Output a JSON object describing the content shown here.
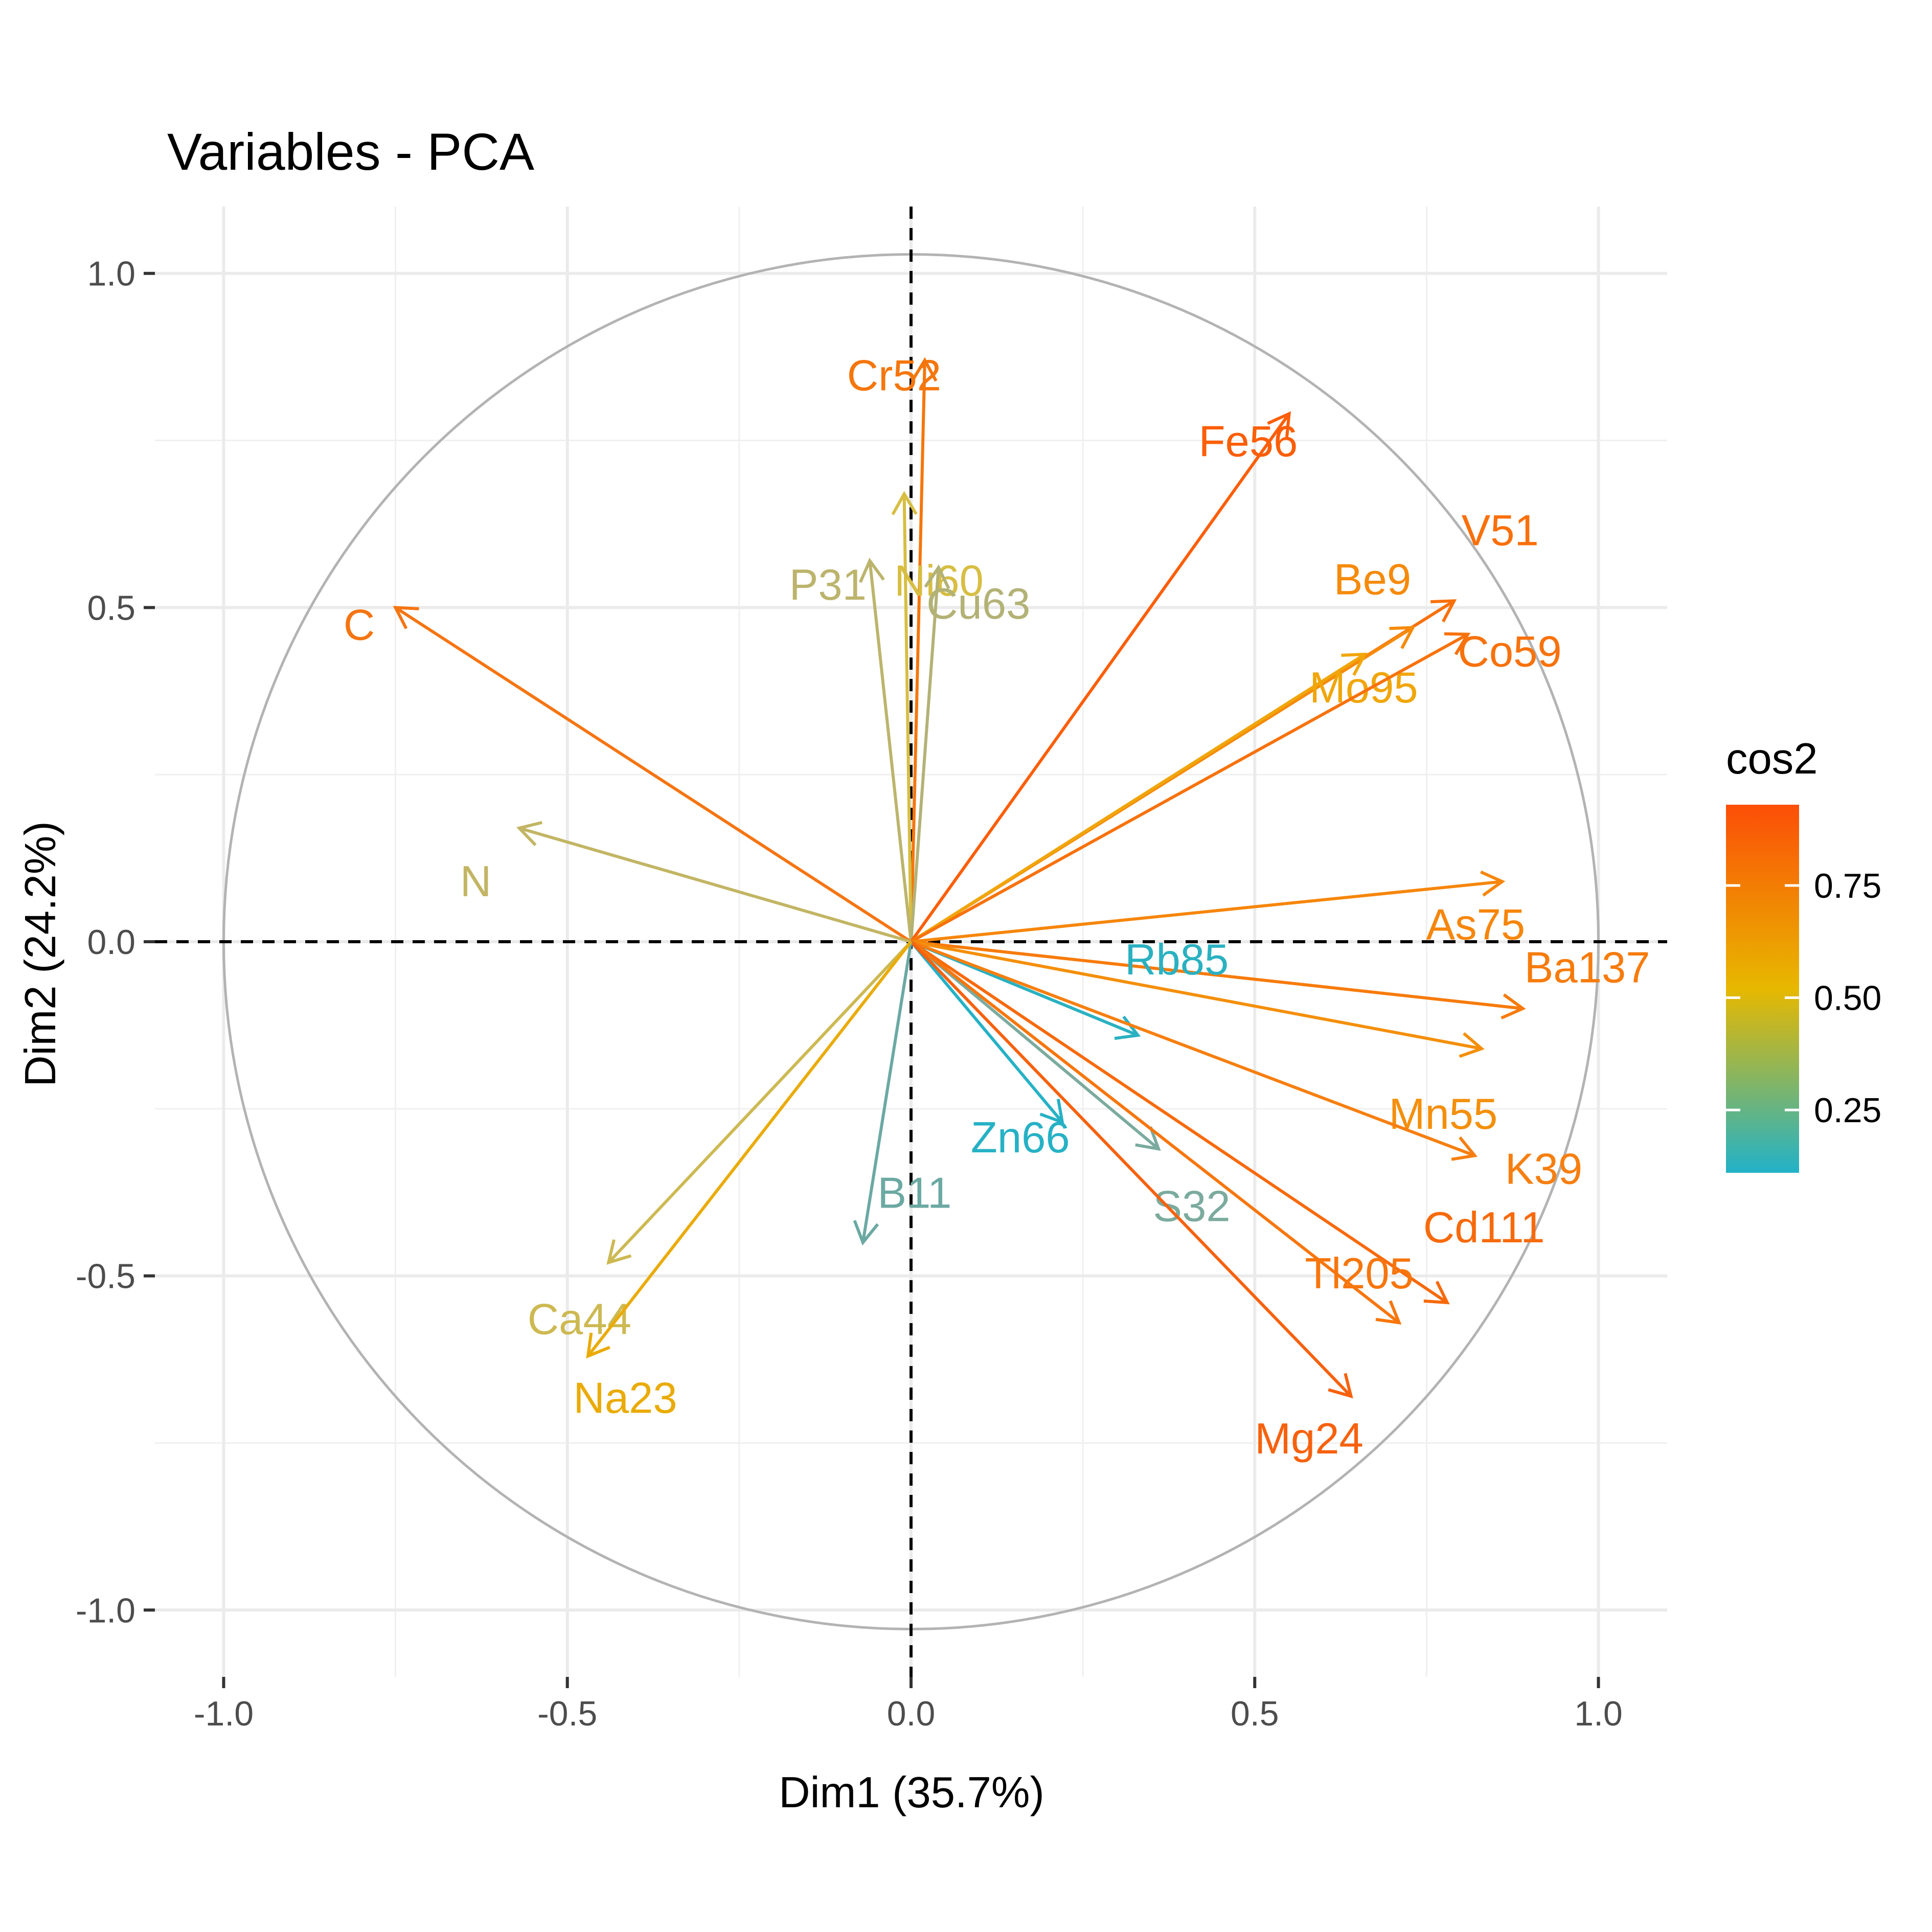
{
  "chart_data": {
    "type": "scatter",
    "title": "Variables - PCA",
    "xlabel": "Dim1 (35.7%)",
    "ylabel": "Dim2 (24.2%)",
    "xlim": [
      -1.1,
      1.1
    ],
    "ylim": [
      -1.1,
      1.1
    ],
    "xticks": [
      -1.0,
      -0.5,
      0.0,
      0.5,
      1.0
    ],
    "xtick_labels": [
      "-1.0",
      "-0.5",
      "0.0",
      "0.5",
      "1.0"
    ],
    "yticks": [
      -1.0,
      -0.5,
      0.0,
      0.5,
      1.0
    ],
    "ytick_labels": [
      "-1.0",
      "-0.5",
      "0.0",
      "0.5",
      "1.0"
    ],
    "grid": true,
    "unit_circle": true,
    "legend": {
      "title": "cos2",
      "position": "right",
      "ticks": [
        0.25,
        0.5,
        0.75
      ],
      "tick_labels": [
        "0.25",
        "0.50",
        "0.75"
      ],
      "range": [
        0.11,
        0.93
      ],
      "colors": [
        "#22b2c8",
        "#e7b800",
        "#fc4e07"
      ]
    },
    "variables": [
      {
        "name": "Cr52",
        "x": 0.02,
        "y": 0.87,
        "cos2": 0.76,
        "color": "#f5760c"
      },
      {
        "name": "Ni60",
        "x": -0.01,
        "y": 0.67,
        "cos2": 0.45,
        "color": "#d7be42"
      },
      {
        "name": "P31",
        "x": -0.06,
        "y": 0.57,
        "cos2": 0.33,
        "color": "#bcb46c"
      },
      {
        "name": "Cu63",
        "x": 0.04,
        "y": 0.56,
        "cos2": 0.31,
        "color": "#b3b276"
      },
      {
        "name": "Fe56",
        "x": 0.55,
        "y": 0.79,
        "cos2": 0.93,
        "color": "#fc5e07"
      },
      {
        "name": "V51",
        "x": 0.79,
        "y": 0.51,
        "cos2": 0.88,
        "color": "#f9700b"
      },
      {
        "name": "Be9",
        "x": 0.73,
        "y": 0.47,
        "cos2": 0.76,
        "color": "#f68a0a"
      },
      {
        "name": "Mo95",
        "x": 0.66,
        "y": 0.43,
        "cos2": 0.62,
        "color": "#f0a60a"
      },
      {
        "name": "Co59",
        "x": 0.81,
        "y": 0.46,
        "cos2": 0.87,
        "color": "#f8720c"
      },
      {
        "name": "C",
        "x": -0.75,
        "y": 0.5,
        "cos2": 0.81,
        "color": "#f57512"
      },
      {
        "name": "N",
        "x": -0.57,
        "y": 0.17,
        "cos2": 0.35,
        "color": "#c2b564"
      },
      {
        "name": "As75",
        "x": 0.86,
        "y": 0.09,
        "cos2": 0.75,
        "color": "#f6860c"
      },
      {
        "name": "Ba137",
        "x": 0.89,
        "y": -0.1,
        "cos2": 0.8,
        "color": "#f77b0c"
      },
      {
        "name": "Mn55",
        "x": 0.83,
        "y": -0.16,
        "cos2": 0.72,
        "color": "#f48f0b"
      },
      {
        "name": "Rb85",
        "x": 0.33,
        "y": -0.14,
        "cos2": 0.13,
        "color": "#2ab1c1"
      },
      {
        "name": "K39",
        "x": 0.82,
        "y": -0.32,
        "cos2": 0.77,
        "color": "#f67f10"
      },
      {
        "name": "Zn66",
        "x": 0.22,
        "y": -0.27,
        "cos2": 0.12,
        "color": "#26b1c5"
      },
      {
        "name": "S32",
        "x": 0.36,
        "y": -0.31,
        "cos2": 0.23,
        "color": "#7bab9e"
      },
      {
        "name": "Cd111",
        "x": 0.78,
        "y": -0.54,
        "cos2": 0.9,
        "color": "#f76a0c"
      },
      {
        "name": "Tl205",
        "x": 0.71,
        "y": -0.57,
        "cos2": 0.83,
        "color": "#f7760c"
      },
      {
        "name": "Mg24",
        "x": 0.64,
        "y": -0.68,
        "cos2": 0.87,
        "color": "#f7610d"
      },
      {
        "name": "B11",
        "x": -0.07,
        "y": -0.45,
        "cos2": 0.21,
        "color": "#6ca9a3"
      },
      {
        "name": "Ca44",
        "x": -0.44,
        "y": -0.48,
        "cos2": 0.42,
        "color": "#cdb952"
      },
      {
        "name": "Na23",
        "x": -0.47,
        "y": -0.62,
        "cos2": 0.6,
        "color": "#eaab06"
      }
    ]
  }
}
